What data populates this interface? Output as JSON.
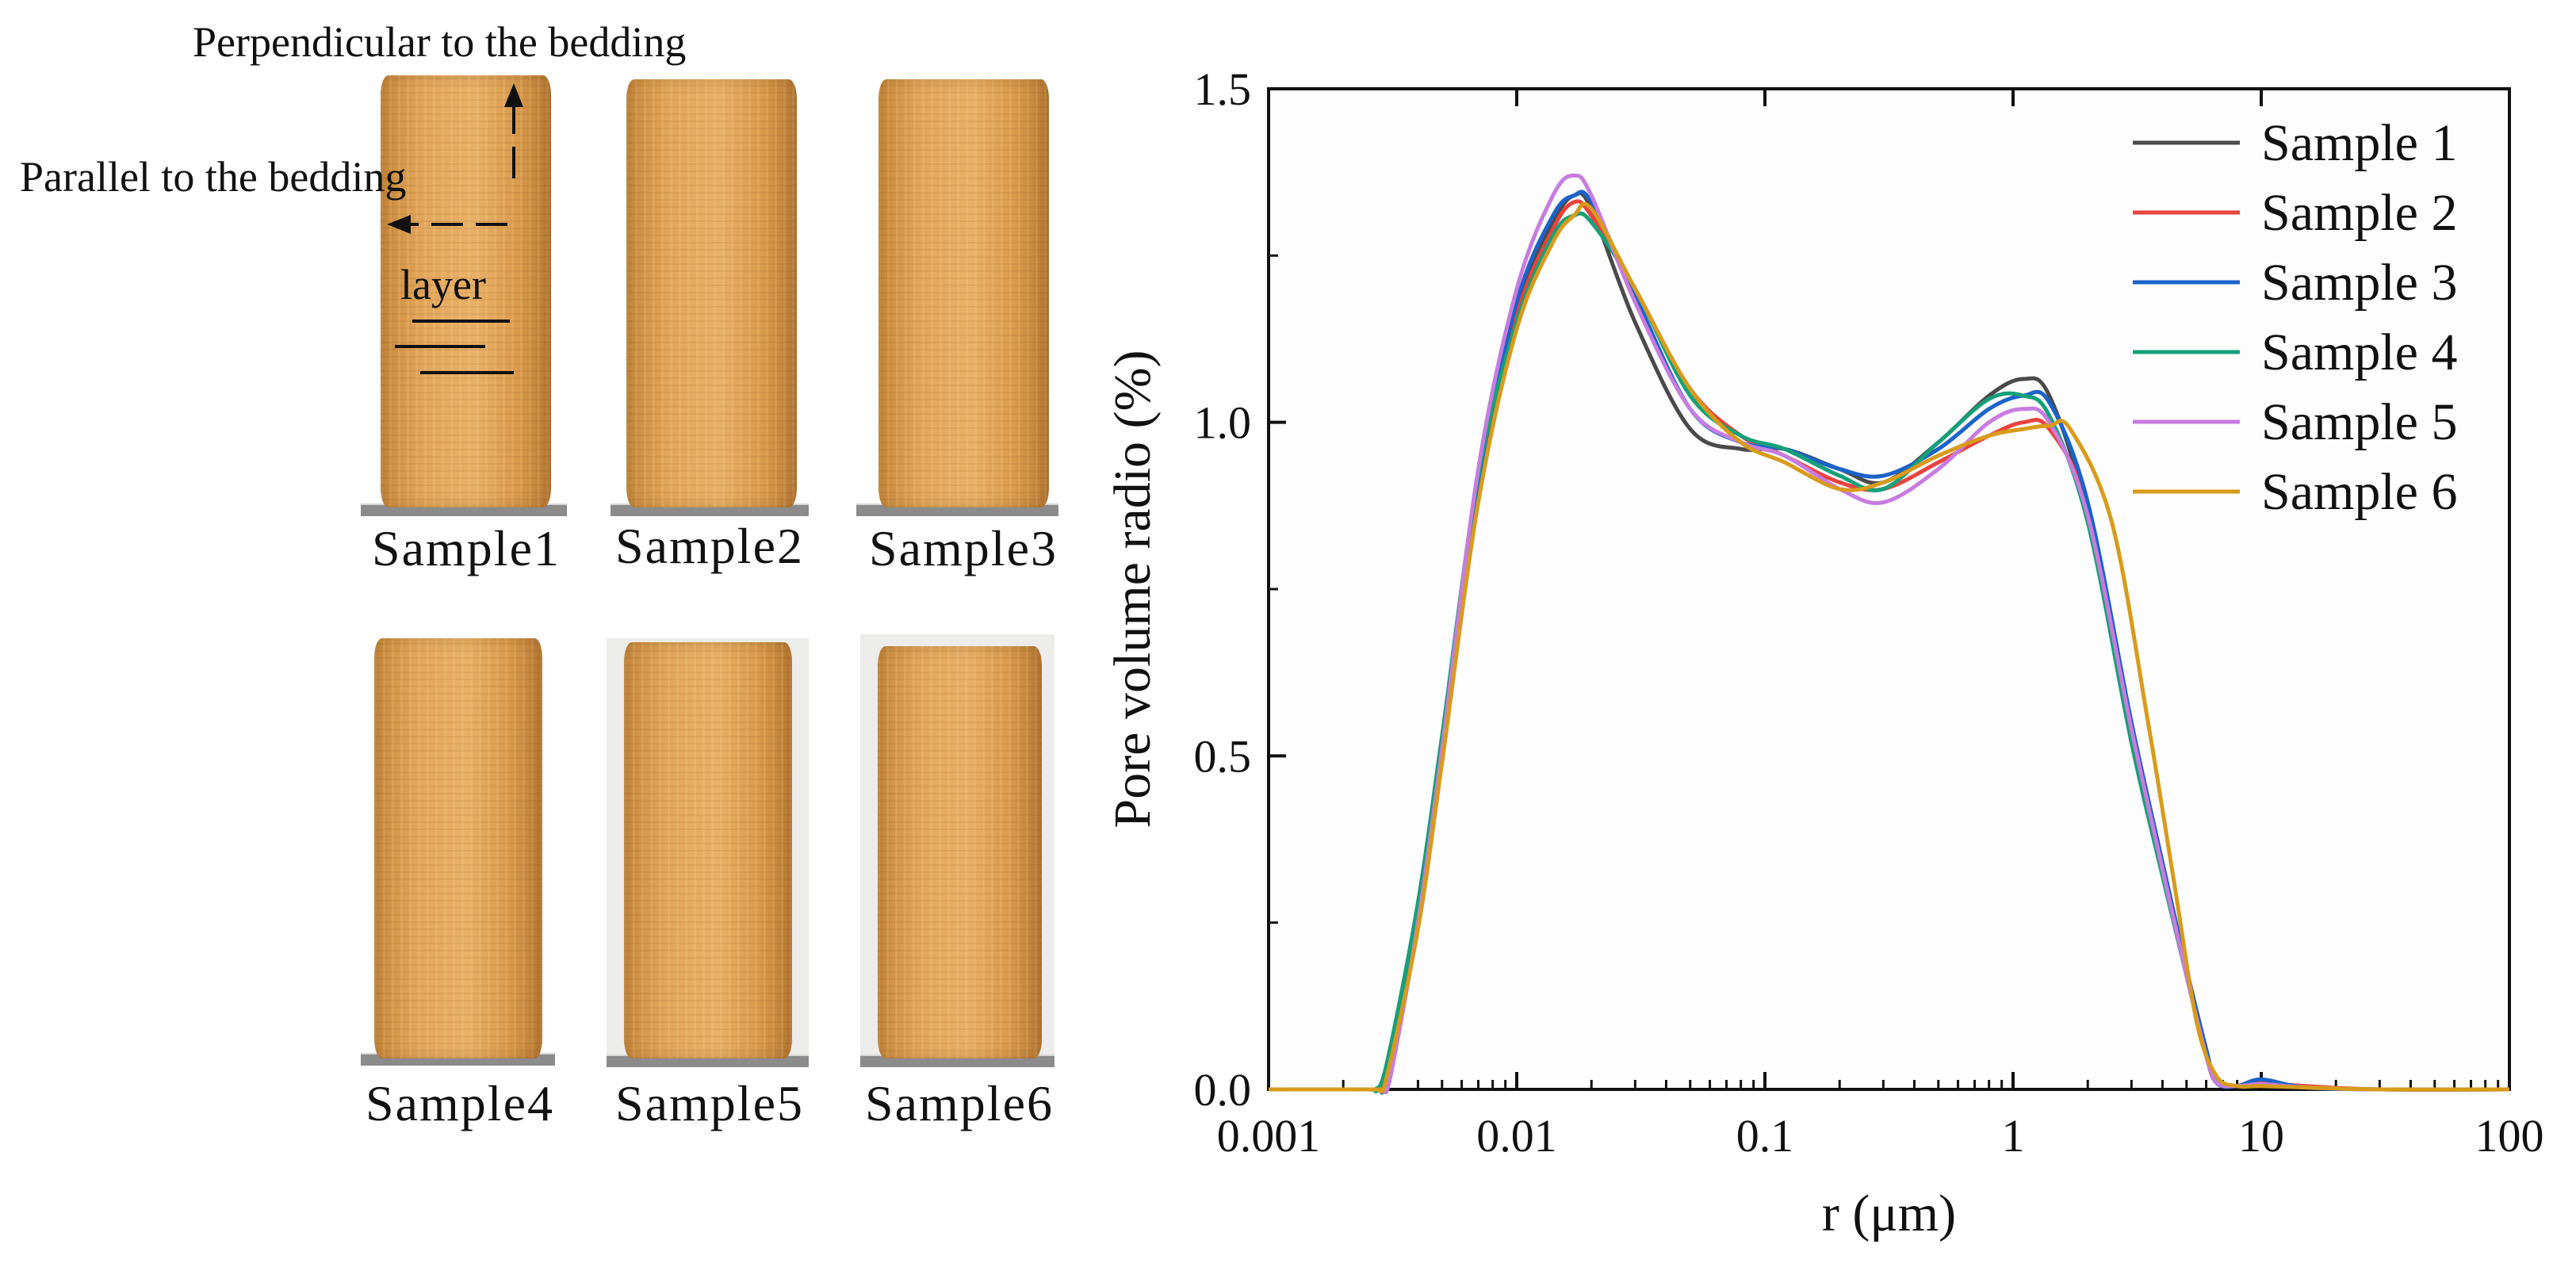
{
  "photo_panel": {
    "annotations": {
      "perpendicular": "Perpendicular to the bedding",
      "parallel": "Parallel to the bedding",
      "layer": "layer"
    },
    "samples": [
      "Sample1",
      "Sample2",
      "Sample3",
      "Sample4",
      "Sample5",
      "Sample6"
    ]
  },
  "chart_data": {
    "type": "line",
    "title": "",
    "xlabel": "r (μm)",
    "ylabel": "Pore volume radio (%)",
    "xscale": "log",
    "xlim": [
      0.001,
      100
    ],
    "ylim": [
      0,
      1.5
    ],
    "xticks": [
      0.001,
      0.01,
      0.1,
      1,
      10,
      100
    ],
    "xtick_labels": [
      "0.001",
      "0.01",
      "0.1",
      "1",
      "10",
      "100"
    ],
    "yticks": [
      0,
      0.5,
      1.0,
      1.5
    ],
    "ytick_labels": [
      "0.0",
      "0.5",
      "1.0",
      "1.5"
    ],
    "legend_position": "top-right",
    "series": [
      {
        "name": "Sample 1",
        "color": "#4a4a4a",
        "x": [
          0.001,
          0.0025,
          0.0027,
          0.003,
          0.004,
          0.005,
          0.007,
          0.01,
          0.014,
          0.017,
          0.02,
          0.03,
          0.05,
          0.08,
          0.12,
          0.2,
          0.3,
          0.5,
          0.8,
          1.1,
          1.4,
          2,
          3,
          4,
          5,
          6,
          6.6,
          8,
          10,
          15,
          30,
          100
        ],
        "y": [
          0,
          0,
          0,
          0.03,
          0.27,
          0.52,
          0.92,
          1.17,
          1.3,
          1.34,
          1.32,
          1.15,
          0.99,
          0.96,
          0.96,
          0.93,
          0.91,
          0.97,
          1.04,
          1.065,
          1.04,
          0.86,
          0.53,
          0.33,
          0.18,
          0.06,
          0.01,
          0.005,
          0.01,
          0.003,
          0,
          0
        ]
      },
      {
        "name": "Sample 2",
        "color": "#e8433e",
        "x": [
          0.001,
          0.0026,
          0.0028,
          0.003,
          0.004,
          0.005,
          0.007,
          0.01,
          0.014,
          0.017,
          0.02,
          0.03,
          0.05,
          0.08,
          0.12,
          0.2,
          0.3,
          0.5,
          0.8,
          1.1,
          1.4,
          2,
          3,
          4,
          5,
          6,
          6.6,
          8,
          10,
          15,
          30,
          100
        ],
        "y": [
          0,
          0,
          0,
          0.02,
          0.25,
          0.5,
          0.9,
          1.16,
          1.29,
          1.33,
          1.31,
          1.2,
          1.05,
          0.98,
          0.95,
          0.91,
          0.9,
          0.94,
          0.98,
          1.0,
          0.99,
          0.87,
          0.55,
          0.34,
          0.18,
          0.06,
          0.01,
          0.005,
          0.01,
          0.005,
          0,
          0
        ]
      },
      {
        "name": "Sample 3",
        "color": "#1a63c9",
        "x": [
          0.001,
          0.0026,
          0.0028,
          0.003,
          0.004,
          0.005,
          0.007,
          0.01,
          0.014,
          0.017,
          0.02,
          0.03,
          0.05,
          0.08,
          0.12,
          0.2,
          0.3,
          0.5,
          0.8,
          1.1,
          1.4,
          2,
          3,
          4,
          5,
          6,
          6.6,
          8,
          10,
          15,
          30,
          100
        ],
        "y": [
          0,
          0,
          0,
          0.02,
          0.26,
          0.51,
          0.91,
          1.18,
          1.31,
          1.34,
          1.33,
          1.19,
          1.02,
          0.97,
          0.96,
          0.93,
          0.92,
          0.96,
          1.02,
          1.04,
          1.03,
          0.88,
          0.55,
          0.34,
          0.18,
          0.06,
          0.01,
          0.005,
          0.015,
          0.003,
          0,
          0
        ]
      },
      {
        "name": "Sample 4",
        "color": "#16a07a",
        "x": [
          0.001,
          0.0025,
          0.0027,
          0.003,
          0.004,
          0.005,
          0.007,
          0.01,
          0.014,
          0.017,
          0.02,
          0.03,
          0.05,
          0.08,
          0.12,
          0.2,
          0.3,
          0.5,
          0.8,
          1.1,
          1.4,
          2,
          3,
          4,
          5,
          6,
          6.6,
          8,
          10,
          15,
          30,
          100
        ],
        "y": [
          0,
          0,
          0,
          0.04,
          0.28,
          0.53,
          0.92,
          1.15,
          1.28,
          1.31,
          1.3,
          1.2,
          1.04,
          0.98,
          0.96,
          0.92,
          0.9,
          0.97,
          1.035,
          1.04,
          1.01,
          0.85,
          0.52,
          0.32,
          0.17,
          0.05,
          0.01,
          0.005,
          0.008,
          0.003,
          0,
          0
        ]
      },
      {
        "name": "Sample 5",
        "color": "#c77ce0",
        "x": [
          0.001,
          0.0027,
          0.0029,
          0.0031,
          0.004,
          0.005,
          0.007,
          0.01,
          0.014,
          0.017,
          0.02,
          0.03,
          0.05,
          0.08,
          0.12,
          0.2,
          0.3,
          0.5,
          0.8,
          1.1,
          1.4,
          2,
          3,
          4,
          5,
          6,
          6.6,
          8,
          10,
          15,
          30,
          100
        ],
        "y": [
          0,
          0,
          0,
          0.02,
          0.25,
          0.51,
          0.93,
          1.2,
          1.34,
          1.37,
          1.34,
          1.18,
          1.02,
          0.97,
          0.95,
          0.9,
          0.88,
          0.93,
          1.0,
          1.02,
          1.0,
          0.86,
          0.54,
          0.33,
          0.17,
          0.05,
          0.01,
          0.005,
          0.008,
          0.003,
          0,
          0
        ]
      },
      {
        "name": "Sample 6",
        "color": "#d89b1a",
        "x": [
          0.001,
          0.0026,
          0.0028,
          0.003,
          0.004,
          0.005,
          0.007,
          0.01,
          0.014,
          0.017,
          0.02,
          0.03,
          0.05,
          0.08,
          0.12,
          0.2,
          0.3,
          0.5,
          0.8,
          1.1,
          1.4,
          1.7,
          2.5,
          3.5,
          4.5,
          5.5,
          6.6,
          8,
          10,
          15,
          30,
          100
        ],
        "y": [
          0,
          0,
          0,
          0.02,
          0.24,
          0.49,
          0.88,
          1.14,
          1.27,
          1.31,
          1.32,
          1.2,
          1.05,
          0.97,
          0.94,
          0.9,
          0.91,
          0.95,
          0.98,
          0.99,
          0.995,
          0.99,
          0.85,
          0.55,
          0.3,
          0.1,
          0.02,
          0.005,
          0.005,
          0.003,
          0,
          0
        ]
      }
    ]
  }
}
